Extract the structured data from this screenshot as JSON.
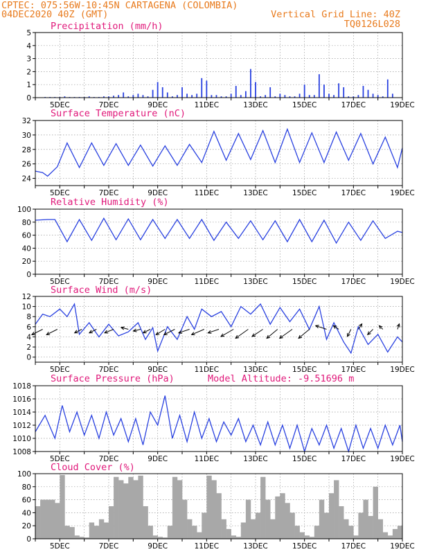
{
  "header": {
    "line1": "CPTEC:   075:56W-10:45N  CARTAGENA (COLOMBIA)",
    "line2_left": "04DEC2020 40Z (GMT)",
    "line2_right": "Vertical Grid Line: 40Z",
    "line3_right": "TQ0126L028"
  },
  "colors": {
    "header": "#e87a1c",
    "title": "#e0187a",
    "line": "#2840e0",
    "bar": "#2840e0",
    "cloud": "#a8a8a8",
    "grid": "#999999"
  },
  "chart_data": [
    {
      "id": "precip",
      "type": "bar",
      "title": "Precipitation (mm/h)",
      "ylim": [
        0,
        5
      ],
      "yticks": [
        0,
        1,
        2,
        3,
        4,
        5
      ],
      "x_range_days": [
        4,
        19
      ],
      "xticks": [
        "5DEC",
        "7DEC",
        "9DEC",
        "11DEC",
        "13DEC",
        "15DEC",
        "17DEC",
        "19DEC"
      ],
      "x": [
        4.4,
        4.6,
        4.8,
        5.0,
        5.2,
        5.4,
        5.6,
        5.8,
        6.0,
        6.2,
        6.4,
        6.6,
        6.8,
        7.0,
        7.2,
        7.4,
        7.6,
        7.8,
        8.0,
        8.2,
        8.4,
        8.6,
        8.8,
        9.0,
        9.2,
        9.4,
        9.6,
        9.8,
        10.0,
        10.2,
        10.4,
        10.6,
        10.8,
        11.0,
        11.2,
        11.4,
        11.6,
        11.8,
        12.0,
        12.2,
        12.4,
        12.6,
        12.8,
        13.0,
        13.2,
        13.4,
        13.6,
        13.8,
        14.0,
        14.2,
        14.4,
        14.6,
        14.8,
        15.0,
        15.2,
        15.4,
        15.6,
        15.8,
        16.0,
        16.2,
        16.4,
        16.6,
        16.8,
        17.0,
        17.2,
        17.4,
        17.6,
        17.8,
        18.0,
        18.2,
        18.4,
        18.6
      ],
      "values": [
        0.05,
        0.05,
        0.05,
        0.05,
        0.1,
        0.05,
        0.05,
        0.05,
        0.05,
        0.1,
        0.05,
        0.05,
        0.1,
        0.1,
        0.15,
        0.2,
        0.4,
        0.1,
        0.2,
        0.3,
        0.2,
        0.1,
        0.6,
        1.2,
        0.8,
        0.4,
        0.1,
        0.2,
        0.8,
        0.3,
        0.2,
        0.3,
        1.5,
        1.3,
        0.2,
        0.2,
        0.1,
        0.1,
        0.3,
        0.9,
        0.2,
        0.5,
        2.2,
        1.2,
        0.1,
        0.2,
        0.8,
        0.1,
        0.3,
        0.2,
        0.1,
        0.1,
        0.3,
        1.0,
        0.2,
        0.2,
        1.8,
        1.0,
        0.3,
        0.2,
        1.1,
        0.8,
        0.1,
        0.1,
        0.2,
        0.9,
        0.6,
        0.3,
        0.2,
        0.1,
        1.4,
        0.3
      ]
    },
    {
      "id": "temp",
      "type": "line",
      "title": "Surface Temperature (nC)",
      "ylim": [
        23,
        32
      ],
      "yticks": [
        24,
        26,
        28,
        30,
        32
      ],
      "x_range_days": [
        4,
        19
      ],
      "xticks": [
        "5DEC",
        "7DEC",
        "9DEC",
        "11DEC",
        "13DEC",
        "15DEC",
        "17DEC",
        "19DEC"
      ],
      "x": [
        4.0,
        4.3,
        4.5,
        4.9,
        5.3,
        5.8,
        6.3,
        6.8,
        7.3,
        7.8,
        8.3,
        8.8,
        9.3,
        9.8,
        10.3,
        10.8,
        11.3,
        11.8,
        12.3,
        12.8,
        13.3,
        13.8,
        14.3,
        14.8,
        15.3,
        15.8,
        16.3,
        16.8,
        17.3,
        17.8,
        18.3,
        18.8,
        19.0
      ],
      "values": [
        25.0,
        24.8,
        24.3,
        25.6,
        28.9,
        25.5,
        28.9,
        25.8,
        28.8,
        25.8,
        28.6,
        25.7,
        28.5,
        25.8,
        28.7,
        26.2,
        30.5,
        26.5,
        30.2,
        26.6,
        30.6,
        26.2,
        30.8,
        26.2,
        30.3,
        26.2,
        30.4,
        26.5,
        30.2,
        26.0,
        29.7,
        25.5,
        28.2
      ]
    },
    {
      "id": "rh",
      "type": "line",
      "title": "Relative Humidity (%)",
      "ylim": [
        0,
        100
      ],
      "yticks": [
        0,
        20,
        40,
        60,
        80,
        100
      ],
      "x_range_days": [
        4,
        19
      ],
      "xticks": [
        "5DEC",
        "7DEC",
        "9DEC",
        "11DEC",
        "13DEC",
        "15DEC",
        "17DEC",
        "19DEC"
      ],
      "x": [
        4.0,
        4.5,
        4.8,
        5.3,
        5.8,
        6.3,
        6.8,
        7.3,
        7.8,
        8.3,
        8.8,
        9.3,
        9.8,
        10.3,
        10.8,
        11.3,
        11.8,
        12.3,
        12.8,
        13.3,
        13.8,
        14.3,
        14.8,
        15.3,
        15.8,
        16.3,
        16.8,
        17.3,
        17.8,
        18.3,
        18.8,
        19.0
      ],
      "values": [
        83,
        84,
        84,
        50,
        84,
        52,
        86,
        53,
        85,
        53,
        84,
        55,
        84,
        55,
        84,
        52,
        80,
        55,
        82,
        53,
        82,
        50,
        84,
        50,
        83,
        48,
        80,
        52,
        82,
        55,
        66,
        64
      ]
    },
    {
      "id": "wind",
      "type": "line",
      "title": "Surface Wind (m/s)",
      "ylim": [
        -1,
        12
      ],
      "yticks": [
        0,
        2,
        4,
        6,
        8,
        10,
        12
      ],
      "x_range_days": [
        4,
        19
      ],
      "xticks": [
        "5DEC",
        "7DEC",
        "9DEC",
        "11DEC",
        "13DEC",
        "15DEC",
        "17DEC",
        "19DEC"
      ],
      "x": [
        4.0,
        4.3,
        4.6,
        5.0,
        5.3,
        5.6,
        5.8,
        6.2,
        6.6,
        7.0,
        7.4,
        7.8,
        8.2,
        8.5,
        8.8,
        9.0,
        9.4,
        9.8,
        10.2,
        10.5,
        10.8,
        11.2,
        11.6,
        12.0,
        12.4,
        12.8,
        13.2,
        13.6,
        14.0,
        14.4,
        14.8,
        15.2,
        15.6,
        15.9,
        16.2,
        16.6,
        16.9,
        17.2,
        17.6,
        18.0,
        18.4,
        18.8,
        19.0
      ],
      "values": [
        6.5,
        8.5,
        8.0,
        9.5,
        8.0,
        10.5,
        4.5,
        6.8,
        4.0,
        6.5,
        4.2,
        5.0,
        6.8,
        3.5,
        5.8,
        1.2,
        6.0,
        3.5,
        8.0,
        5.5,
        9.5,
        8.0,
        9.0,
        6.0,
        10.0,
        8.5,
        10.5,
        6.5,
        9.8,
        7.0,
        9.5,
        5.5,
        10.0,
        3.5,
        6.8,
        3.0,
        0.8,
        6.0,
        2.5,
        4.5,
        1.0,
        4.0,
        3.0
      ],
      "vectors": [
        {
          "x": 4.3,
          "u": -6,
          "v": -3
        },
        {
          "x": 4.9,
          "u": -6,
          "v": -3
        },
        {
          "x": 5.9,
          "u": -4,
          "v": -2
        },
        {
          "x": 6.5,
          "u": -4,
          "v": -2
        },
        {
          "x": 7.2,
          "u": -5,
          "v": -2
        },
        {
          "x": 7.8,
          "u": -4,
          "v": 1
        },
        {
          "x": 8.3,
          "u": -4,
          "v": -1
        },
        {
          "x": 8.7,
          "u": -4,
          "v": -2
        },
        {
          "x": 9.3,
          "u": -5,
          "v": -3
        },
        {
          "x": 9.7,
          "u": -6,
          "v": -3
        },
        {
          "x": 10.3,
          "u": -6,
          "v": -2
        },
        {
          "x": 10.9,
          "u": -7,
          "v": -3
        },
        {
          "x": 11.5,
          "u": -6,
          "v": -2
        },
        {
          "x": 12.1,
          "u": -7,
          "v": -4
        },
        {
          "x": 12.7,
          "u": -7,
          "v": -5
        },
        {
          "x": 13.3,
          "u": -6,
          "v": -4
        },
        {
          "x": 13.9,
          "u": -6,
          "v": -5
        },
        {
          "x": 14.5,
          "u": -7,
          "v": -5
        },
        {
          "x": 15.2,
          "u": -6,
          "v": -5
        },
        {
          "x": 15.9,
          "u": -6,
          "v": 2
        },
        {
          "x": 16.4,
          "u": -3,
          "v": 2
        },
        {
          "x": 16.9,
          "u": -2,
          "v": -4
        },
        {
          "x": 17.2,
          "u": 2,
          "v": 3
        },
        {
          "x": 17.8,
          "u": -3,
          "v": -3
        },
        {
          "x": 18.2,
          "u": -2,
          "v": 2
        },
        {
          "x": 18.8,
          "u": 1,
          "v": 3
        }
      ]
    },
    {
      "id": "pressure",
      "type": "line",
      "title": "Surface Pressure (hPa)",
      "annotation": "Model Altitude: -9.51696 m",
      "ylim": [
        1008,
        1018
      ],
      "yticks": [
        1008,
        1010,
        1012,
        1014,
        1016,
        1018
      ],
      "x_range_days": [
        4,
        19
      ],
      "xticks": [
        "5DEC",
        "7DEC",
        "9DEC",
        "11DEC",
        "13DEC",
        "15DEC",
        "17DEC",
        "19DEC"
      ],
      "x": [
        4.0,
        4.4,
        4.8,
        5.1,
        5.4,
        5.7,
        6.0,
        6.3,
        6.6,
        6.9,
        7.2,
        7.5,
        7.8,
        8.1,
        8.4,
        8.7,
        9.0,
        9.3,
        9.6,
        9.9,
        10.2,
        10.5,
        10.8,
        11.1,
        11.4,
        11.7,
        12.0,
        12.3,
        12.6,
        12.9,
        13.2,
        13.5,
        13.8,
        14.1,
        14.4,
        14.7,
        15.0,
        15.3,
        15.6,
        15.9,
        16.2,
        16.5,
        16.8,
        17.1,
        17.4,
        17.7,
        18.0,
        18.3,
        18.6,
        18.9,
        19.0
      ],
      "values": [
        1011,
        1013.5,
        1010,
        1015,
        1011,
        1014,
        1010.5,
        1013.5,
        1010,
        1014,
        1010.5,
        1013,
        1009.5,
        1013,
        1009,
        1014,
        1012,
        1016.5,
        1010,
        1013.5,
        1009.5,
        1014,
        1010,
        1013,
        1009.5,
        1012.5,
        1010.5,
        1013,
        1009.5,
        1012,
        1009,
        1012.5,
        1009,
        1012,
        1008.5,
        1012,
        1008,
        1011.5,
        1009,
        1012,
        1008.5,
        1011.5,
        1008,
        1012,
        1008.5,
        1011.5,
        1008.5,
        1012,
        1009,
        1012,
        1009.5
      ]
    },
    {
      "id": "cloud",
      "type": "area",
      "title": "Cloud Cover (%)",
      "ylim": [
        0,
        100
      ],
      "yticks": [
        0,
        20,
        40,
        60,
        80,
        100
      ],
      "x_range_days": [
        4,
        19
      ],
      "xticks": [
        "5DEC",
        "7DEC",
        "9DEC",
        "11DEC",
        "13DEC",
        "15DEC",
        "17DEC",
        "19DEC"
      ],
      "x": [
        4.0,
        4.2,
        4.5,
        4.8,
        5.0,
        5.2,
        5.4,
        5.6,
        5.8,
        6.0,
        6.2,
        6.4,
        6.6,
        6.8,
        7.0,
        7.2,
        7.4,
        7.6,
        7.8,
        8.0,
        8.2,
        8.4,
        8.6,
        8.8,
        9.0,
        9.2,
        9.4,
        9.6,
        9.8,
        10.0,
        10.2,
        10.4,
        10.6,
        10.8,
        11.0,
        11.2,
        11.4,
        11.6,
        11.8,
        12.0,
        12.2,
        12.4,
        12.6,
        12.8,
        13.0,
        13.2,
        13.4,
        13.6,
        13.8,
        14.0,
        14.2,
        14.4,
        14.6,
        14.8,
        15.0,
        15.2,
        15.4,
        15.6,
        15.8,
        16.0,
        16.2,
        16.4,
        16.6,
        16.8,
        17.0,
        17.2,
        17.4,
        17.6,
        17.8,
        18.0,
        18.2,
        18.4,
        18.6,
        18.8,
        19.0
      ],
      "values": [
        50,
        60,
        60,
        55,
        98,
        20,
        18,
        5,
        3,
        2,
        25,
        20,
        30,
        25,
        50,
        95,
        90,
        85,
        95,
        90,
        97,
        50,
        20,
        5,
        3,
        2,
        20,
        95,
        90,
        60,
        30,
        20,
        10,
        40,
        97,
        90,
        70,
        30,
        15,
        5,
        3,
        25,
        60,
        30,
        40,
        95,
        60,
        30,
        65,
        70,
        55,
        40,
        20,
        10,
        5,
        3,
        20,
        60,
        40,
        70,
        90,
        50,
        30,
        20,
        5,
        40,
        60,
        35,
        80,
        30,
        10,
        5,
        15,
        20,
        5
      ]
    }
  ]
}
